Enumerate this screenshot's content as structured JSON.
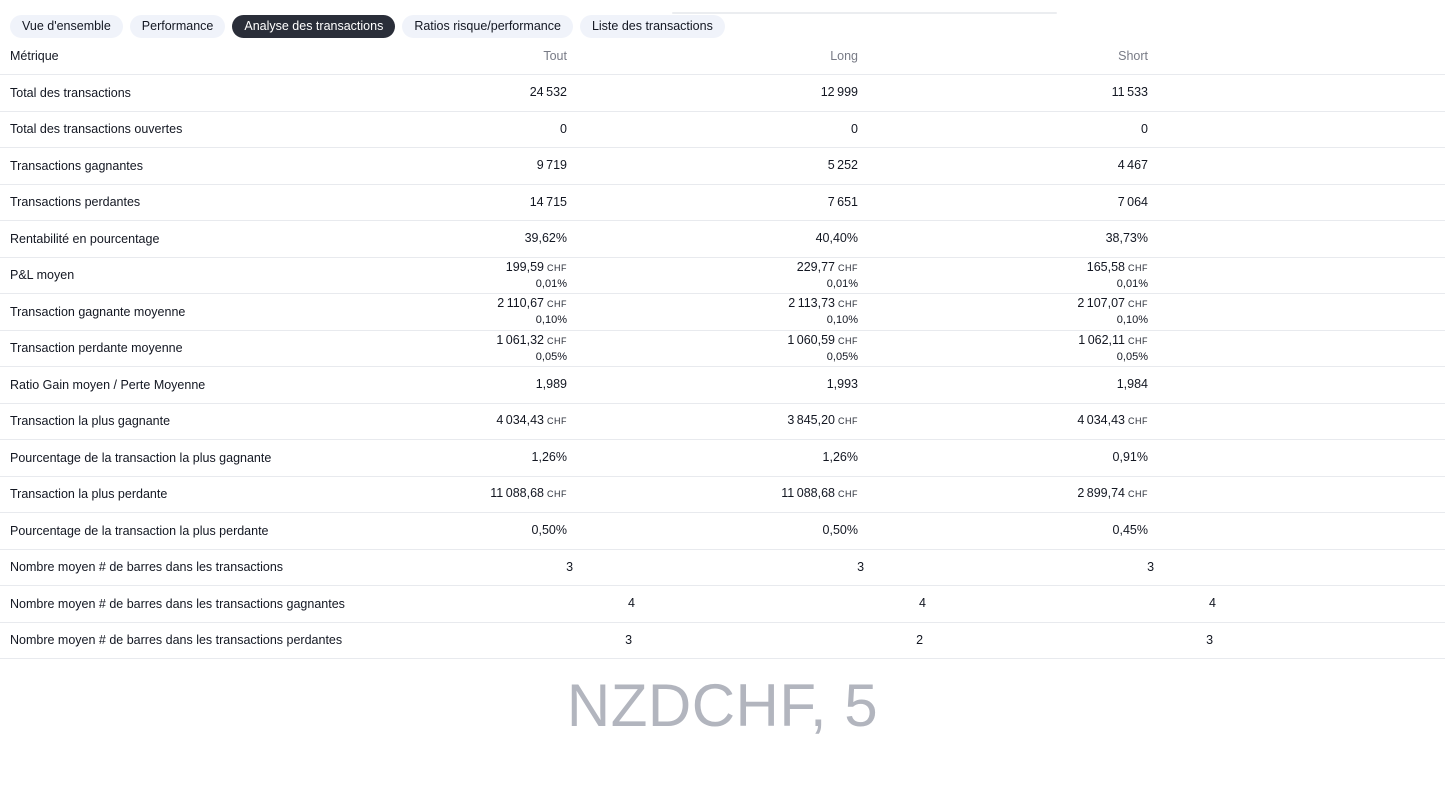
{
  "colors": {
    "page_bg": "#ffffff",
    "active_tab_bg": "#2a2e39",
    "active_tab_text": "#ffffff",
    "inactive_tab_bg": "#f0f3fa",
    "tab_text": "#131722",
    "header_text": "#787b86",
    "body_text": "#131722",
    "unit_text": "#2a2e39",
    "separator": "#e8eaee",
    "divider": "#ebedf0",
    "watermark": "#b2b5be"
  },
  "tabs": [
    {
      "label": "Vue d'ensemble",
      "active": false
    },
    {
      "label": "Performance",
      "active": false
    },
    {
      "label": "Analyse des transactions",
      "active": true
    },
    {
      "label": "Ratios risque/performance",
      "active": false
    },
    {
      "label": "Liste des transactions",
      "active": false
    }
  ],
  "table": {
    "columns": [
      "Métrique",
      "Tout",
      "Long",
      "Short"
    ],
    "rows": [
      {
        "metric": "Total des transactions",
        "tout": {
          "value": "24 532"
        },
        "long": {
          "value": "12 999"
        },
        "short": {
          "value": "11 533"
        }
      },
      {
        "metric": "Total des transactions ouvertes",
        "tout": {
          "value": "0"
        },
        "long": {
          "value": "0"
        },
        "short": {
          "value": "0"
        }
      },
      {
        "metric": "Transactions gagnantes",
        "tout": {
          "value": "9 719"
        },
        "long": {
          "value": "5 252"
        },
        "short": {
          "value": "4 467"
        }
      },
      {
        "metric": "Transactions perdantes",
        "tout": {
          "value": "14 715"
        },
        "long": {
          "value": "7 651"
        },
        "short": {
          "value": "7 064"
        }
      },
      {
        "metric": "Rentabilité en pourcentage",
        "tout": {
          "value": "39,62%"
        },
        "long": {
          "value": "40,40%"
        },
        "short": {
          "value": "38,73%"
        }
      },
      {
        "metric": "P&L moyen",
        "tout": {
          "value": "199,59",
          "unit": "CHF",
          "sub": "0,01%"
        },
        "long": {
          "value": "229,77",
          "unit": "CHF",
          "sub": "0,01%"
        },
        "short": {
          "value": "165,58",
          "unit": "CHF",
          "sub": "0,01%"
        }
      },
      {
        "metric": "Transaction gagnante moyenne",
        "tout": {
          "value": "2 110,67",
          "unit": "CHF",
          "sub": "0,10%"
        },
        "long": {
          "value": "2 113,73",
          "unit": "CHF",
          "sub": "0,10%"
        },
        "short": {
          "value": "2 107,07",
          "unit": "CHF",
          "sub": "0,10%"
        }
      },
      {
        "metric": "Transaction perdante moyenne",
        "tout": {
          "value": "1 061,32",
          "unit": "CHF",
          "sub": "0,05%"
        },
        "long": {
          "value": "1 060,59",
          "unit": "CHF",
          "sub": "0,05%"
        },
        "short": {
          "value": "1 062,11",
          "unit": "CHF",
          "sub": "0,05%"
        }
      },
      {
        "metric": "Ratio Gain moyen / Perte Moyenne",
        "tout": {
          "value": "1,989"
        },
        "long": {
          "value": "1,993"
        },
        "short": {
          "value": "1,984"
        }
      },
      {
        "metric": "Transaction la plus gagnante",
        "tout": {
          "value": "4 034,43",
          "unit": "CHF"
        },
        "long": {
          "value": "3 845,20",
          "unit": "CHF"
        },
        "short": {
          "value": "4 034,43",
          "unit": "CHF"
        }
      },
      {
        "metric": "Pourcentage de la transaction la plus gagnante",
        "tout": {
          "value": "1,26%"
        },
        "long": {
          "value": "1,26%"
        },
        "short": {
          "value": "0,91%"
        }
      },
      {
        "metric": "Transaction la plus perdante",
        "tout": {
          "value": "11 088,68",
          "unit": "CHF"
        },
        "long": {
          "value": "11 088,68",
          "unit": "CHF"
        },
        "short": {
          "value": "2 899,74",
          "unit": "CHF"
        }
      },
      {
        "metric": "Pourcentage de la transaction la plus perdante",
        "tout": {
          "value": "0,50%"
        },
        "long": {
          "value": "0,50%"
        },
        "short": {
          "value": "0,45%"
        }
      },
      {
        "metric": "Nombre moyen # de barres dans les transactions",
        "tout": {
          "value": "3"
        },
        "long": {
          "value": "3"
        },
        "short": {
          "value": "3"
        }
      },
      {
        "metric": "Nombre moyen # de barres dans les transactions gagnantes",
        "tout": {
          "value": "4"
        },
        "long": {
          "value": "4"
        },
        "short": {
          "value": "4"
        }
      },
      {
        "metric": "Nombre moyen # de barres dans les transactions perdantes",
        "tout": {
          "value": "3"
        },
        "long": {
          "value": "2"
        },
        "short": {
          "value": "3"
        }
      }
    ]
  },
  "watermark": "NZDCHF, 5"
}
